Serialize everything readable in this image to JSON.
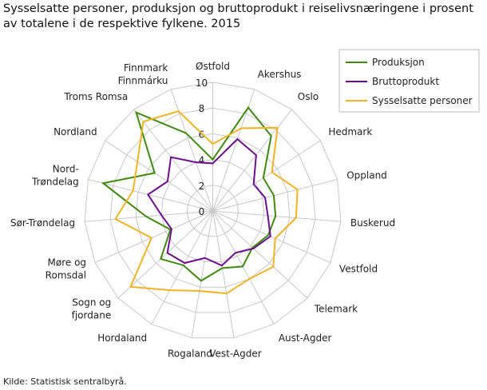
{
  "chart_data": {
    "type": "radar",
    "title": "Sysselsatte personer, produksjon og bruttoprodukt i reiselivsnæringene i prosent av totalene i de respektive fylkene. 2015",
    "categories": [
      "Østfold",
      "Akershus",
      "Oslo",
      "Hedmark",
      "Oppland",
      "Buskerud",
      "Vestfold",
      "Telemark",
      "Aust-Agder",
      "Vest-Agder",
      "Rogaland",
      "Hordaland",
      "Sogn og fjordane",
      "Møre og Romsdal",
      "Sør-Trøndelag",
      "Nord-Trøndelag",
      "Nordland",
      "Troms Romsa",
      "Finnmark Finnmárku"
    ],
    "category_label_lines": [
      [
        "Østfold"
      ],
      [
        "Akershus"
      ],
      [
        "Oslo"
      ],
      [
        "Hedmark"
      ],
      [
        "Oppland"
      ],
      [
        "Buskerud"
      ],
      [
        "Vestfold"
      ],
      [
        "Telemark"
      ],
      [
        "Aust-Agder"
      ],
      [
        "Vest-Agder"
      ],
      [
        "Rogaland"
      ],
      [
        "Hordaland"
      ],
      [
        "Sogn og",
        "fjordane"
      ],
      [
        "Møre og",
        "Romsdal"
      ],
      [
        "Sør-Trøndelag"
      ],
      [
        "Nord-",
        "Trøndelag"
      ],
      [
        "Nordland"
      ],
      [
        "Troms Romsa"
      ],
      [
        "Finnmark",
        "Finnmárku"
      ]
    ],
    "rlim": [
      0,
      10
    ],
    "ticks": [
      "0",
      "2",
      "4",
      "6",
      "8",
      "10"
    ],
    "grid": true,
    "legend_position": "top-right",
    "series": [
      {
        "name": "Produksjon",
        "color": "#3f8a0e",
        "values": [
          4.0,
          8.5,
          7.4,
          4.7,
          4.9,
          4.9,
          4.7,
          4.2,
          4.9,
          4.5,
          5.5,
          4.8,
          5.5,
          3.6,
          5.2,
          8.8,
          5.4,
          9.7,
          6.4
        ]
      },
      {
        "name": "Bruttoprodukt",
        "color": "#6c0f8f",
        "values": [
          3.7,
          5.9,
          5.5,
          3.8,
          4.2,
          4.3,
          4.9,
          4.3,
          3.7,
          4.3,
          3.7,
          4.6,
          4.8,
          3.5,
          4.0,
          5.2,
          4.2,
          5.3,
          4.0
        ]
      },
      {
        "name": "Sysselsatte personer",
        "color": "#f0b323",
        "values": [
          5.2,
          6.8,
          8.2,
          5.5,
          6.8,
          6.5,
          5.3,
          6.4,
          6.0,
          6.5,
          6.3,
          7.0,
          8.7,
          5.2,
          7.6,
          6.4,
          7.0,
          8.8,
          8.2
        ]
      }
    ]
  },
  "source": "Kilde: Statistisk sentralbyrå."
}
